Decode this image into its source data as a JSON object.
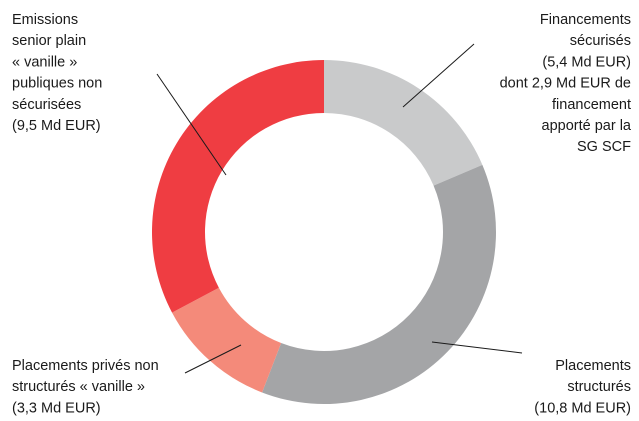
{
  "chart_data": {
    "type": "pie",
    "donut": true,
    "unit": "Md EUR",
    "slices": [
      {
        "value": 5.4,
        "color": "#c9cacb",
        "label_lines": [
          "Financements",
          "sécurisés",
          "(5,4 Md EUR)",
          "dont 2,9 Md EUR de",
          "financement",
          "apporté par la",
          "SG SCF"
        ]
      },
      {
        "value": 10.8,
        "color": "#a4a5a7",
        "label_lines": [
          "Placements",
          "structurés",
          "(10,8 Md EUR)"
        ]
      },
      {
        "value": 3.3,
        "color": "#f48a7a",
        "label_lines": [
          "Placements privés non",
          "structurés « vanille »",
          "(3,3 Md EUR)"
        ]
      },
      {
        "value": 9.5,
        "color": "#ef3d42",
        "label_lines": [
          "Emissions",
          "senior plain",
          "« vanille »",
          "publiques non",
          "sécurisées",
          "(9,5 Md EUR)"
        ]
      }
    ]
  }
}
